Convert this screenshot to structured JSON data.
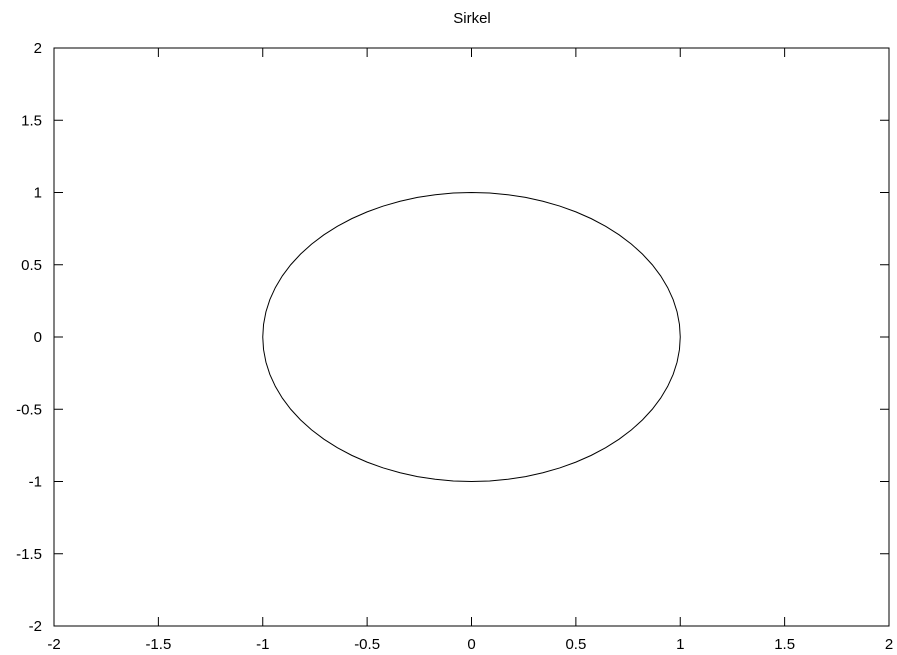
{
  "chart_data": {
    "type": "line",
    "title": "Sirkel",
    "xlabel": "",
    "ylabel": "",
    "xlim": [
      -2,
      2
    ],
    "ylim": [
      -2,
      2
    ],
    "grid": false,
    "legend": "none",
    "x_ticks": [
      -2,
      -1.5,
      -1,
      -0.5,
      0,
      0.5,
      1,
      1.5,
      2
    ],
    "x_tick_labels": [
      "-2",
      "-1.5",
      "-1",
      "-0.5",
      "0",
      "0.5",
      "1",
      "1.5",
      "2"
    ],
    "y_ticks": [
      -2,
      -1.5,
      -1,
      -0.5,
      0,
      0.5,
      1,
      1.5,
      2
    ],
    "y_tick_labels": [
      "-2",
      "-1.5",
      "-1",
      "-0.5",
      "0",
      "0.5",
      "1",
      "1.5",
      "2"
    ],
    "series": [
      {
        "shape": "circle",
        "center": [
          0,
          0
        ],
        "radius": 1,
        "color": "#000000",
        "x": [
          1,
          0.9239,
          0.7071,
          0.3827,
          0,
          -0.3827,
          -0.7071,
          -0.9239,
          -1,
          -0.9239,
          -0.7071,
          -0.3827,
          0,
          0.3827,
          0.7071,
          0.9239,
          1
        ],
        "y": [
          0,
          0.3827,
          0.7071,
          0.9239,
          1,
          0.9239,
          0.7071,
          0.3827,
          0,
          -0.3827,
          -0.7071,
          -0.9239,
          -1,
          -0.9239,
          -0.7071,
          -0.3827,
          0
        ]
      }
    ]
  }
}
